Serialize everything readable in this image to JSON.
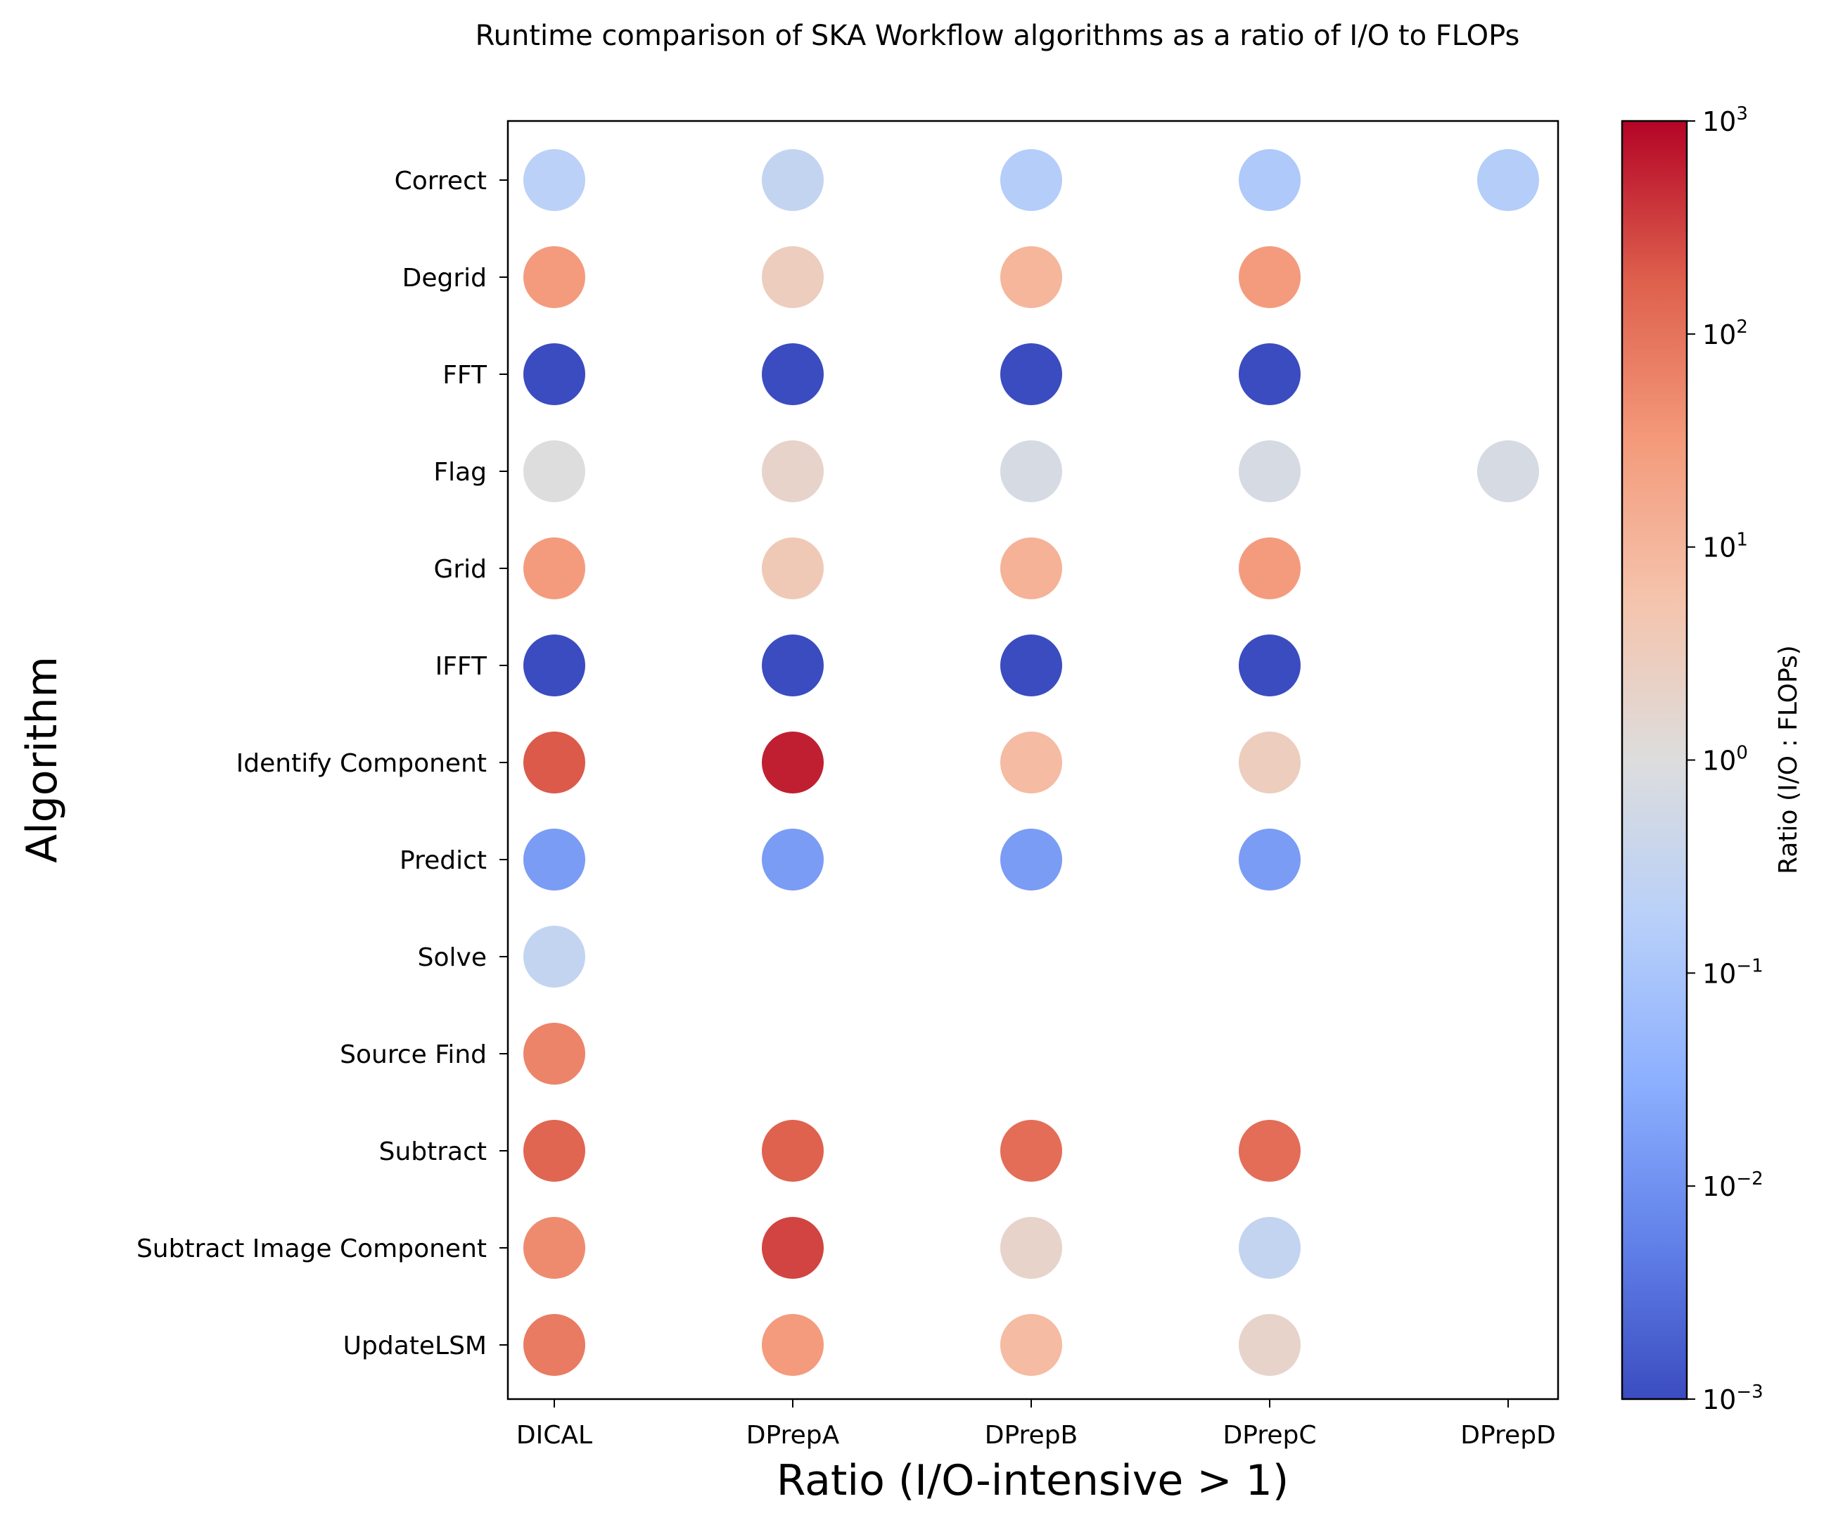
{
  "chart_data": {
    "type": "scatter",
    "title": "Runtime comparison of SKA Workflow algorithms as a ratio of I/O to FLOPs",
    "xlabel": "Ratio (I/O-intensive > 1)",
    "ylabel": "Algorithm",
    "colorbar_label": "Ratio (I/O : FLOPs)",
    "color_scale": "log",
    "colormap": "coolwarm",
    "color_range": [
      0.001,
      1000
    ],
    "colorbar_ticks": [
      {
        "base": "10",
        "exp": "3",
        "value": 1000
      },
      {
        "base": "10",
        "exp": "2",
        "value": 100
      },
      {
        "base": "10",
        "exp": "1",
        "value": 10
      },
      {
        "base": "10",
        "exp": "0",
        "value": 1
      },
      {
        "base": "10",
        "exp": "−1",
        "value": 0.1
      },
      {
        "base": "10",
        "exp": "−2",
        "value": 0.01
      },
      {
        "base": "10",
        "exp": "−3",
        "value": 0.001
      }
    ],
    "x_categories": [
      "DICAL",
      "DPrepA",
      "DPrepB",
      "DPrepC",
      "DPrepD"
    ],
    "y_categories": [
      "Correct",
      "Degrid",
      "FFT",
      "Flag",
      "Grid",
      "IFFT",
      "Identify Component",
      "Predict",
      "Solve",
      "Source Find",
      "Subtract",
      "Subtract Image Component",
      "UpdateLSM"
    ],
    "grid": false,
    "legend": "colorbar-right",
    "points": [
      {
        "x": "DICAL",
        "y": "Correct",
        "ratio": 0.2
      },
      {
        "x": "DPrepA",
        "y": "Correct",
        "ratio": 0.3
      },
      {
        "x": "DPrepB",
        "y": "Correct",
        "ratio": 0.15
      },
      {
        "x": "DPrepC",
        "y": "Correct",
        "ratio": 0.12
      },
      {
        "x": "DPrepD",
        "y": "Correct",
        "ratio": 0.15
      },
      {
        "x": "DICAL",
        "y": "Degrid",
        "ratio": 30
      },
      {
        "x": "DPrepA",
        "y": "Degrid",
        "ratio": 3
      },
      {
        "x": "DPrepB",
        "y": "Degrid",
        "ratio": 10
      },
      {
        "x": "DPrepC",
        "y": "Degrid",
        "ratio": 30
      },
      {
        "x": "DICAL",
        "y": "FFT",
        "ratio": 0.001
      },
      {
        "x": "DPrepA",
        "y": "FFT",
        "ratio": 0.001
      },
      {
        "x": "DPrepB",
        "y": "FFT",
        "ratio": 0.001
      },
      {
        "x": "DPrepC",
        "y": "FFT",
        "ratio": 0.001
      },
      {
        "x": "DICAL",
        "y": "Flag",
        "ratio": 1
      },
      {
        "x": "DPrepA",
        "y": "Flag",
        "ratio": 2
      },
      {
        "x": "DPrepB",
        "y": "Flag",
        "ratio": 0.7
      },
      {
        "x": "DPrepC",
        "y": "Flag",
        "ratio": 0.7
      },
      {
        "x": "DPrepD",
        "y": "Flag",
        "ratio": 0.7
      },
      {
        "x": "DICAL",
        "y": "Grid",
        "ratio": 30
      },
      {
        "x": "DPrepA",
        "y": "Grid",
        "ratio": 4
      },
      {
        "x": "DPrepB",
        "y": "Grid",
        "ratio": 12
      },
      {
        "x": "DPrepC",
        "y": "Grid",
        "ratio": 30
      },
      {
        "x": "DICAL",
        "y": "IFFT",
        "ratio": 0.001
      },
      {
        "x": "DPrepA",
        "y": "IFFT",
        "ratio": 0.001
      },
      {
        "x": "DPrepB",
        "y": "IFFT",
        "ratio": 0.001
      },
      {
        "x": "DPrepC",
        "y": "IFFT",
        "ratio": 0.001
      },
      {
        "x": "DICAL",
        "y": "Identify Component",
        "ratio": 200
      },
      {
        "x": "DPrepA",
        "y": "Identify Component",
        "ratio": 600
      },
      {
        "x": "DPrepB",
        "y": "Identify Component",
        "ratio": 8
      },
      {
        "x": "DPrepC",
        "y": "Identify Component",
        "ratio": 3
      },
      {
        "x": "DICAL",
        "y": "Predict",
        "ratio": 0.015
      },
      {
        "x": "DPrepA",
        "y": "Predict",
        "ratio": 0.015
      },
      {
        "x": "DPrepB",
        "y": "Predict",
        "ratio": 0.015
      },
      {
        "x": "DPrepC",
        "y": "Predict",
        "ratio": 0.015
      },
      {
        "x": "DICAL",
        "y": "Solve",
        "ratio": 0.3
      },
      {
        "x": "DICAL",
        "y": "Source Find",
        "ratio": 60
      },
      {
        "x": "DICAL",
        "y": "Subtract",
        "ratio": 150
      },
      {
        "x": "DPrepA",
        "y": "Subtract",
        "ratio": 170
      },
      {
        "x": "DPrepB",
        "y": "Subtract",
        "ratio": 120
      },
      {
        "x": "DPrepC",
        "y": "Subtract",
        "ratio": 120
      },
      {
        "x": "DICAL",
        "y": "Subtract Image Component",
        "ratio": 50
      },
      {
        "x": "DPrepA",
        "y": "Subtract Image Component",
        "ratio": 300
      },
      {
        "x": "DPrepB",
        "y": "Subtract Image Component",
        "ratio": 2
      },
      {
        "x": "DPrepC",
        "y": "Subtract Image Component",
        "ratio": 0.3
      },
      {
        "x": "DICAL",
        "y": "UpdateLSM",
        "ratio": 80
      },
      {
        "x": "DPrepA",
        "y": "UpdateLSM",
        "ratio": 30
      },
      {
        "x": "DPrepB",
        "y": "UpdateLSM",
        "ratio": 8
      },
      {
        "x": "DPrepC",
        "y": "UpdateLSM",
        "ratio": 2
      }
    ]
  }
}
